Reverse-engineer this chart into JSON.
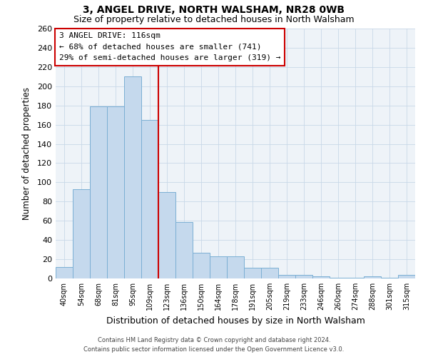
{
  "title": "3, ANGEL DRIVE, NORTH WALSHAM, NR28 0WB",
  "subtitle": "Size of property relative to detached houses in North Walsham",
  "xlabel": "Distribution of detached houses by size in North Walsham",
  "ylabel": "Number of detached properties",
  "categories": [
    "40sqm",
    "54sqm",
    "68sqm",
    "81sqm",
    "95sqm",
    "109sqm",
    "123sqm",
    "136sqm",
    "150sqm",
    "164sqm",
    "178sqm",
    "191sqm",
    "205sqm",
    "219sqm",
    "233sqm",
    "246sqm",
    "260sqm",
    "274sqm",
    "288sqm",
    "301sqm",
    "315sqm"
  ],
  "values": [
    12,
    93,
    179,
    179,
    210,
    165,
    90,
    59,
    27,
    23,
    23,
    11,
    11,
    4,
    4,
    2,
    1,
    1,
    2,
    1,
    4
  ],
  "bar_color": "#c5d9ed",
  "bar_edge_color": "#7bafd4",
  "vline_x": 5.5,
  "vline_color": "#cc0000",
  "annotation_title": "3 ANGEL DRIVE: 116sqm",
  "annotation_line1": "← 68% of detached houses are smaller (741)",
  "annotation_line2": "29% of semi-detached houses are larger (319) →",
  "annotation_box_color": "#ffffff",
  "annotation_box_edge": "#cc0000",
  "ylim": [
    0,
    260
  ],
  "yticks": [
    0,
    20,
    40,
    60,
    80,
    100,
    120,
    140,
    160,
    180,
    200,
    220,
    240,
    260
  ],
  "footer1": "Contains HM Land Registry data © Crown copyright and database right 2024.",
  "footer2": "Contains public sector information licensed under the Open Government Licence v3.0.",
  "bg_color": "#ffffff",
  "plot_bg_color": "#eef3f8",
  "grid_color": "#c8d8e8",
  "title_fontsize": 10,
  "subtitle_fontsize": 9
}
